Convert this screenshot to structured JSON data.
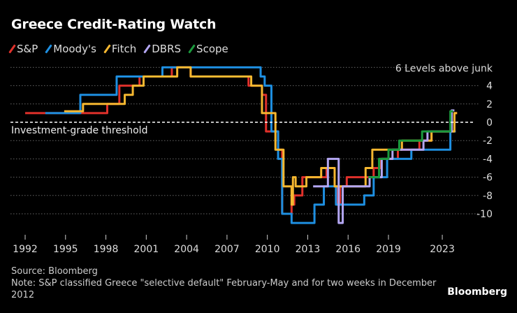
{
  "chart_data": {
    "type": "line",
    "title": "Greece Credit-Rating Watch",
    "xlabel": "",
    "ylabel": "",
    "x_ticks": [
      "1992",
      "1995",
      "1998",
      "2001",
      "2004",
      "2007",
      "2010",
      "2013",
      "2016",
      "2019",
      "2023"
    ],
    "y_ticks": [
      4,
      2,
      0,
      -2,
      -4,
      -6,
      -8,
      -10
    ],
    "y_top_label": "6 Levels above junk",
    "ylim": [
      -11,
      6
    ],
    "xlim": [
      1992,
      2024
    ],
    "grid": true,
    "legend_position": "top-left",
    "annotation": "Investment-grade threshold",
    "series": [
      {
        "name": "S&P",
        "color": "#e0312b",
        "steps": [
          [
            1992,
            1
          ],
          [
            1998.1,
            2
          ],
          [
            1999,
            4
          ],
          [
            2000.5,
            5
          ],
          [
            2002.9,
            6
          ],
          [
            2004.3,
            5
          ],
          [
            2008.6,
            4
          ],
          [
            2009.6,
            3
          ],
          [
            2009.9,
            -1
          ],
          [
            2010.8,
            -3
          ],
          [
            2011.1,
            -10
          ],
          [
            2011.8,
            -9
          ],
          [
            2012,
            -8
          ],
          [
            2012.6,
            -6
          ],
          [
            2014.4,
            -5
          ],
          [
            2015,
            -7
          ],
          [
            2015.2,
            -9
          ],
          [
            2015.4,
            -7
          ],
          [
            2015.9,
            -6
          ],
          [
            2017.9,
            -5
          ],
          [
            2018.4,
            -4
          ],
          [
            2019.7,
            -3
          ],
          [
            2021.3,
            -2
          ],
          [
            2022.2,
            -1
          ],
          [
            2023.9,
            1
          ],
          [
            2024.1,
            1
          ]
        ]
      },
      {
        "name": "Moody's",
        "color": "#1e8fe1",
        "steps": [
          [
            1993.5,
            1
          ],
          [
            1996.1,
            3
          ],
          [
            1998.8,
            5
          ],
          [
            2002.2,
            6
          ],
          [
            2009.5,
            5
          ],
          [
            2009.8,
            4
          ],
          [
            2010.3,
            -1
          ],
          [
            2010.8,
            -4
          ],
          [
            2011.1,
            -10
          ],
          [
            2011.8,
            -11
          ],
          [
            2013.5,
            -9
          ],
          [
            2014.2,
            -7
          ],
          [
            2015.1,
            -9
          ],
          [
            2017.2,
            -8
          ],
          [
            2017.9,
            -6
          ],
          [
            2018.9,
            -4
          ],
          [
            2020.7,
            -3
          ],
          [
            2023.6,
            -1
          ],
          [
            2024,
            -1
          ]
        ]
      },
      {
        "name": "Fitch",
        "color": "#f5b730",
        "steps": [
          [
            1994.9,
            1.2
          ],
          [
            1996.3,
            2
          ],
          [
            1999.4,
            3
          ],
          [
            2000,
            4
          ],
          [
            2000.8,
            5
          ],
          [
            2003.3,
            6
          ],
          [
            2004.3,
            5
          ],
          [
            2008.8,
            4
          ],
          [
            2009.6,
            1
          ],
          [
            2010.6,
            -3
          ],
          [
            2011.2,
            -7
          ],
          [
            2011.8,
            -9
          ],
          [
            2011.9,
            -6
          ],
          [
            2012.1,
            -7
          ],
          [
            2012.9,
            -6
          ],
          [
            2014,
            -5
          ],
          [
            2015,
            -7
          ],
          [
            2017.3,
            -5
          ],
          [
            2017.8,
            -3
          ],
          [
            2018.5,
            -3
          ],
          [
            2020,
            -2
          ],
          [
            2022.2,
            -1
          ],
          [
            2023.9,
            1
          ],
          [
            2024.1,
            1
          ]
        ]
      },
      {
        "name": "DBRS",
        "color": "#b3a6f2",
        "steps": [
          [
            2013.4,
            -7
          ],
          [
            2014.5,
            -4
          ],
          [
            2015.3,
            -11
          ],
          [
            2015.6,
            -7
          ],
          [
            2017.6,
            -6
          ],
          [
            2018.5,
            -4
          ],
          [
            2019.3,
            -3
          ],
          [
            2021.6,
            -2
          ],
          [
            2021.9,
            -1
          ],
          [
            2023.7,
            1.3
          ],
          [
            2023.9,
            1.3
          ]
        ]
      },
      {
        "name": "Scope",
        "color": "#1a9a3c",
        "steps": [
          [
            2017.5,
            -6
          ],
          [
            2018.3,
            -4
          ],
          [
            2019,
            -3
          ],
          [
            2019.8,
            -2
          ],
          [
            2021.5,
            -1
          ],
          [
            2023.6,
            1.2
          ],
          [
            2023.8,
            1.2
          ]
        ]
      }
    ]
  },
  "footer": {
    "source": "Source: Bloomberg",
    "note": "Note: S&P classified Greece \"selective default\" February-May and for two weeks in December 2012",
    "brand": "Bloomberg"
  }
}
